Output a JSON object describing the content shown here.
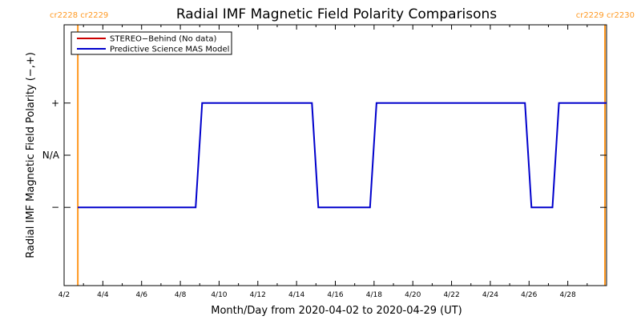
{
  "chart_data": {
    "type": "line",
    "title": "Radial IMF Magnetic Field Polarity Comparisons",
    "xlabel": "Month/Day from 2020-04-02 to 2020-04-29 (UT)",
    "ylabel": "Radial IMF Magnetic Field Polarity (−,+)",
    "x_start": "2020-04-02",
    "xlim": [
      "2020-04-02",
      "2020-04-30"
    ],
    "ylim": [
      -2.5,
      2.5
    ],
    "x_tick_labels": [
      "4/2",
      "4/4",
      "4/6",
      "4/8",
      "4/10",
      "4/12",
      "4/14",
      "4/16",
      "4/18",
      "4/20",
      "4/22",
      "4/24",
      "4/26",
      "4/28"
    ],
    "y_ticks": [
      {
        "value": 1,
        "label": "+"
      },
      {
        "value": 0,
        "label": "N/A"
      },
      {
        "value": -1,
        "label": "−"
      }
    ],
    "legend_position": "top-left",
    "series": [
      {
        "name": "STEREO−Behind (No data)",
        "color": "#cc0000",
        "points": []
      },
      {
        "name": "Predictive Science MAS Model",
        "color": "#0000cc",
        "points": [
          {
            "x": "2020-04-02T17:00",
            "y": -1
          },
          {
            "x": "2020-04-08T19:00",
            "y": -1
          },
          {
            "x": "2020-04-09T03:00",
            "y": 1
          },
          {
            "x": "2020-04-14T19:00",
            "y": 1
          },
          {
            "x": "2020-04-15T03:00",
            "y": -1
          },
          {
            "x": "2020-04-17T19:00",
            "y": -1
          },
          {
            "x": "2020-04-18T03:00",
            "y": 1
          },
          {
            "x": "2020-04-25T19:00",
            "y": 1
          },
          {
            "x": "2020-04-26T03:00",
            "y": -1
          },
          {
            "x": "2020-04-27T05:00",
            "y": -1
          },
          {
            "x": "2020-04-27T13:00",
            "y": 1
          },
          {
            "x": "2020-04-30T00:00",
            "y": 1
          }
        ]
      }
    ],
    "carrington_markers": [
      {
        "x": "2020-04-02T17:00",
        "label": "cr2228 cr2229",
        "color": "#ff9922"
      },
      {
        "x": "2020-04-29T22:00",
        "label": "cr2229 cr2230",
        "color": "#ff9922"
      }
    ]
  }
}
